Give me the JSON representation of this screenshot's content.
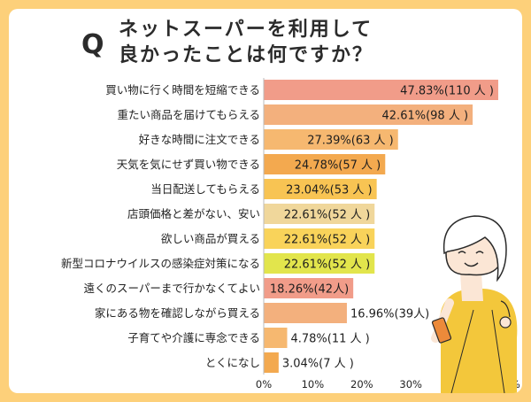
{
  "title": {
    "q": "Q",
    "line1": "ネットスーパーを利用して",
    "line2": "良かったことは何ですか？"
  },
  "colors": {
    "background": "#fdd07a",
    "card": "#ffffff",
    "bars": [
      "#f19c89",
      "#f3b07d",
      "#f6b870",
      "#f3a94f",
      "#f8c453",
      "#f0d79b",
      "#f9d35a",
      "#e2e54c",
      "#f19c89",
      "#f3b07d",
      "#f6b870",
      "#f3a94f"
    ]
  },
  "chart_data": {
    "type": "bar",
    "orientation": "horizontal",
    "categories": [
      "買い物に行く時間を短縮できる",
      "重たい商品を届けてもらえる",
      "好きな時間に注文できる",
      "天気を気にせず買い物できる",
      "当日配送してもらえる",
      "店頭価格と差がない、安い",
      "欲しい商品が買える",
      "新型コロナウイルスの感染症対策になる",
      "遠くのスーパーまで行かなくてよい",
      "家にある物を確認しながら買える",
      "子育てや介護に専念できる",
      "とくになし"
    ],
    "values": [
      47.83,
      42.61,
      27.39,
      24.78,
      23.04,
      22.61,
      22.61,
      22.61,
      18.26,
      16.96,
      4.78,
      3.04
    ],
    "labels": [
      "47.83%(110 人 )",
      "42.61%(98 人 )",
      "27.39%(63 人 )",
      "24.78%(57 人 )",
      "23.04%(53 人 )",
      "22.61%(52 人 )",
      "22.61%(52 人 )",
      "22.61%(52 人 )",
      "18.26%(42人)",
      "16.96%(39人)",
      "4.78%(11 人 )",
      "3.04%(7 人 )"
    ],
    "xlim": [
      0,
      50
    ],
    "xticks": [
      "0%",
      "10%",
      "20%",
      "30%",
      "40%",
      "50%"
    ],
    "grid": false,
    "legend": "none"
  }
}
